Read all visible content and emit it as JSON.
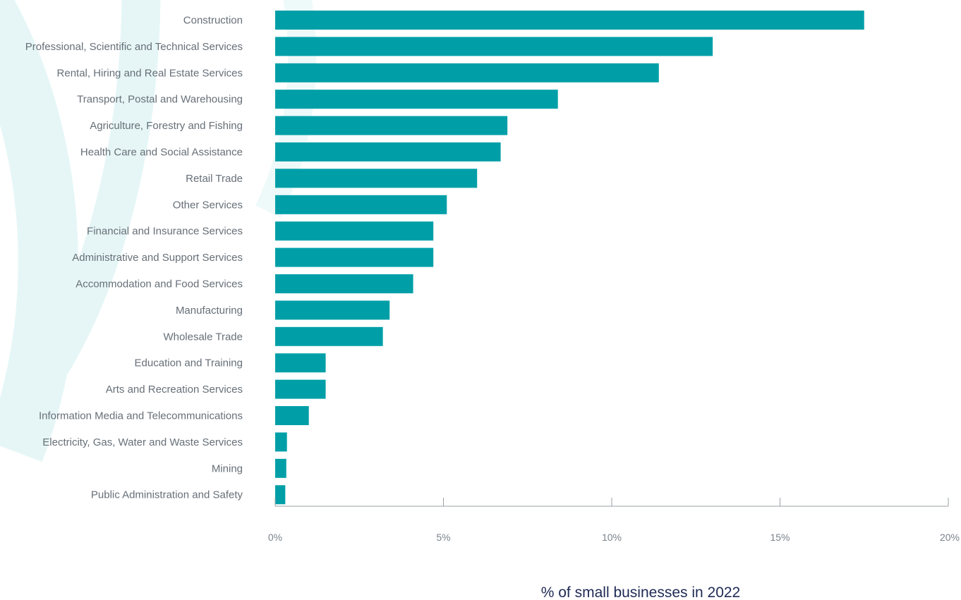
{
  "chart_data": {
    "type": "bar",
    "orientation": "horizontal",
    "categories": [
      "Construction",
      "Professional, Scientific and Technical Services",
      "Rental, Hiring and Real Estate Services",
      "Transport, Postal and Warehousing",
      "Agriculture, Forestry and Fishing",
      "Health Care and Social Assistance",
      "Retail Trade",
      "Other Services",
      "Financial and Insurance Services",
      "Administrative and Support Services",
      "Accommodation and Food Services",
      "Manufacturing",
      "Wholesale Trade",
      "Education and Training",
      "Arts and Recreation Services",
      "Information Media and Telecommunications",
      "Electricity, Gas, Water and Waste Services",
      "Mining",
      "Public Administration and Safety"
    ],
    "values": [
      17.5,
      13.0,
      11.4,
      8.4,
      6.9,
      6.7,
      6.0,
      5.1,
      4.7,
      4.7,
      4.1,
      3.4,
      3.2,
      1.5,
      1.5,
      1.0,
      0.35,
      0.33,
      0.3
    ],
    "xlim": [
      0,
      20
    ],
    "ticks": [
      "0%",
      "5%",
      "10%",
      "15%",
      "20%"
    ],
    "xlabel": "% of small businesses in 2022",
    "ylabel": "",
    "grid": false,
    "bar_color": "#009fa8",
    "background_decoration_color": "#e6f6f6"
  }
}
